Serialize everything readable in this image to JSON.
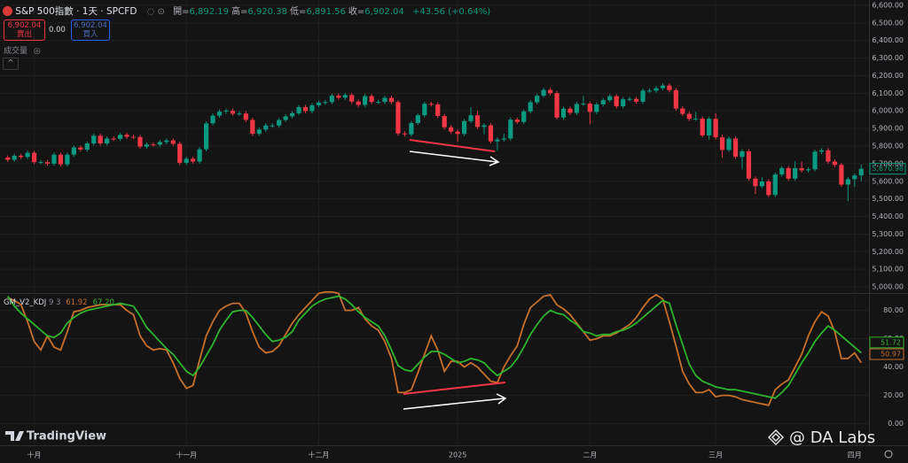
{
  "header": {
    "title": "S&P 500指數 · 1天 · SPCFD",
    "ohlc": [
      {
        "label": "開=",
        "value": "6,892.19"
      },
      {
        "label": "高=",
        "value": "6,920.38"
      },
      {
        "label": "低=",
        "value": "6,891.56"
      },
      {
        "label": "收=",
        "value": "6,902.04"
      }
    ],
    "change": "+43.56 (+0.64%)",
    "sell_price": "6,902.04",
    "sell_label": "賣出",
    "spread": "0.00",
    "buy_price": "6,902.04",
    "buy_label": "買入",
    "volume_label": "成交量"
  },
  "chart_data": [
    {
      "type": "candlestick",
      "up_color": "#089981",
      "down_color": "#f23645",
      "grid": true,
      "categories": [
        null,
        null,
        null,
        null,
        "十月",
        null,
        null,
        null,
        null,
        null,
        null,
        null,
        null,
        null,
        null,
        null,
        null,
        null,
        null,
        null,
        null,
        null,
        null,
        null,
        null,
        null,
        null,
        "十一月",
        null,
        null,
        null,
        null,
        null,
        null,
        null,
        null,
        null,
        null,
        null,
        null,
        null,
        null,
        null,
        null,
        null,
        null,
        null,
        "十二月",
        null,
        null,
        null,
        null,
        null,
        null,
        null,
        null,
        null,
        null,
        null,
        null,
        null,
        null,
        null,
        null,
        null,
        null,
        null,
        null,
        "2025",
        null,
        null,
        null,
        null,
        null,
        null,
        null,
        null,
        null,
        null,
        null,
        null,
        null,
        null,
        null,
        null,
        null,
        null,
        null,
        "二月",
        null,
        null,
        null,
        null,
        null,
        null,
        null,
        null,
        null,
        null,
        null,
        null,
        null,
        null,
        null,
        null,
        null,
        null,
        "三月",
        null,
        null,
        null,
        null,
        null,
        null,
        null,
        null,
        null,
        null,
        null,
        null,
        null,
        null,
        null,
        null,
        null,
        null,
        null,
        null,
        "四月",
        null
      ],
      "open": [
        5735,
        5722,
        5745,
        5738,
        5762,
        5709,
        5709,
        5700,
        5751,
        5696,
        5751,
        5792,
        5780,
        5815,
        5859,
        5815,
        5843,
        5841,
        5864,
        5853,
        5851,
        5797,
        5809,
        5808,
        5823,
        5832,
        5813,
        5705,
        5728,
        5712,
        5782,
        5929,
        5973,
        5996,
        6001,
        5984,
        5985,
        5949,
        5870,
        5894,
        5917,
        5917,
        5948,
        5969,
        5987,
        6021,
        5999,
        6032,
        6047,
        6050,
        6086,
        6075,
        6090,
        6053,
        6034,
        6084,
        6051,
        6051,
        6074,
        6050,
        5872,
        5867,
        5931,
        5975,
        6040,
        6037,
        5971,
        5907,
        5882,
        5869,
        5942,
        5975,
        5909,
        5918,
        5827,
        5837,
        5843,
        5950,
        5937,
        5997,
        6049,
        6086,
        6119,
        6101,
        5962,
        6012,
        5989,
        6039,
        6041,
        5994,
        6037,
        6061,
        6083,
        6026,
        6066,
        6068,
        6052,
        6115,
        6115,
        6129,
        6144,
        6118,
        6013,
        5983,
        5955,
        5956,
        5861,
        5955,
        5850,
        5778,
        5843,
        5739,
        5770,
        5615,
        5572,
        5599,
        5522,
        5639,
        5675,
        5615,
        5675,
        5662,
        5668,
        5768,
        5776,
        5712,
        5693,
        5581,
        5612,
        5633
      ],
      "high": [
        5747,
        5757,
        5757,
        5774,
        5774,
        5721,
        5721,
        5763,
        5763,
        5763,
        5804,
        5804,
        5827,
        5871,
        5871,
        5855,
        5855,
        5876,
        5876,
        5865,
        5863,
        5821,
        5821,
        5835,
        5844,
        5844,
        5825,
        5740,
        5740,
        5794,
        5941,
        5985,
        6008,
        6013,
        6013,
        5997,
        5997,
        5961,
        5906,
        5929,
        5929,
        5960,
        5981,
        5999,
        6033,
        6033,
        6044,
        6059,
        6062,
        6098,
        6098,
        6102,
        6102,
        6065,
        6096,
        6096,
        6063,
        6086,
        6086,
        6062,
        5884,
        5943,
        5987,
        6052,
        6052,
        6049,
        5983,
        5919,
        5894,
        5954,
        6021,
        6000,
        5930,
        5930,
        5849,
        5870,
        5962,
        5962,
        6009,
        6061,
        6098,
        6131,
        6131,
        6113,
        6024,
        6024,
        6051,
        6085,
        6053,
        6049,
        6073,
        6095,
        6095,
        6078,
        6080,
        6080,
        6127,
        6127,
        6141,
        6156,
        6156,
        6130,
        6025,
        5995,
        5995,
        5968,
        5967,
        5987,
        5866,
        5855,
        5855,
        5783,
        5782,
        5627,
        5623,
        5611,
        5651,
        5687,
        5687,
        5715,
        5711,
        5680,
        5780,
        5788,
        5788,
        5724,
        5705,
        5624,
        5645,
        5695
      ],
      "low": [
        5710,
        5710,
        5726,
        5726,
        5697,
        5697,
        5688,
        5688,
        5684,
        5684,
        5739,
        5768,
        5768,
        5803,
        5803,
        5803,
        5829,
        5829,
        5841,
        5839,
        5785,
        5785,
        5796,
        5796,
        5811,
        5801,
        5693,
        5693,
        5700,
        5700,
        5770,
        5917,
        5961,
        5984,
        5972,
        5972,
        5937,
        5858,
        5858,
        5882,
        5905,
        5905,
        5936,
        5957,
        5975,
        5987,
        5987,
        6020,
        6035,
        6038,
        6063,
        6063,
        6041,
        6022,
        6022,
        6039,
        6039,
        6039,
        6038,
        5860,
        5855,
        5855,
        5919,
        5963,
        6025,
        5959,
        5895,
        5870,
        5824,
        5857,
        5930,
        5897,
        5867,
        5815,
        5773,
        5825,
        5831,
        5925,
        5925,
        5985,
        6037,
        6074,
        6089,
        5950,
        5950,
        5977,
        5977,
        6029,
        5924,
        5982,
        6025,
        6049,
        6014,
        6014,
        6054,
        6040,
        6040,
        6103,
        6103,
        6117,
        6106,
        6001,
        5971,
        5943,
        5943,
        5849,
        5837,
        5838,
        5733,
        5766,
        5727,
        5667,
        5603,
        5528,
        5560,
        5510,
        5510,
        5627,
        5603,
        5603,
        5650,
        5650,
        5656,
        5756,
        5700,
        5681,
        5569,
        5488,
        5568,
        5600
      ],
      "close": [
        5722,
        5745,
        5738,
        5762,
        5709,
        5709,
        5700,
        5751,
        5696,
        5751,
        5792,
        5780,
        5815,
        5859,
        5815,
        5843,
        5841,
        5864,
        5853,
        5851,
        5797,
        5809,
        5808,
        5823,
        5832,
        5813,
        5705,
        5728,
        5712,
        5782,
        5929,
        5973,
        5996,
        6001,
        5984,
        5985,
        5949,
        5870,
        5894,
        5917,
        5917,
        5948,
        5969,
        5987,
        6021,
        5999,
        6032,
        6047,
        6050,
        6086,
        6075,
        6090,
        6053,
        6034,
        6084,
        6051,
        6051,
        6074,
        6050,
        5872,
        5867,
        5931,
        5975,
        6040,
        6037,
        5971,
        5907,
        5882,
        5869,
        5942,
        5975,
        5909,
        5918,
        5827,
        5837,
        5843,
        5950,
        5937,
        5997,
        6049,
        6086,
        6119,
        6101,
        5962,
        6012,
        5989,
        6039,
        6041,
        5994,
        6037,
        6061,
        6083,
        6026,
        6066,
        6068,
        6052,
        6115,
        6115,
        6129,
        6144,
        6118,
        6013,
        5983,
        5955,
        5956,
        5861,
        5955,
        5850,
        5778,
        5843,
        5739,
        5770,
        5615,
        5572,
        5599,
        5522,
        5639,
        5675,
        5615,
        5675,
        5662,
        5668,
        5768,
        5776,
        5712,
        5693,
        5581,
        5612,
        5633,
        5671
      ],
      "ylim": [
        4965,
        6630
      ],
      "yticks": [
        {
          "value": 6600,
          "label": "6,600.00"
        },
        {
          "value": 6500,
          "label": "6,500.00"
        },
        {
          "value": 6400,
          "label": "6,400.00"
        },
        {
          "value": 6300,
          "label": "6,300.00"
        },
        {
          "value": 6200,
          "label": "6,200.00"
        },
        {
          "value": 6100,
          "label": "6,100.00"
        },
        {
          "value": 6000,
          "label": "6,000.00"
        },
        {
          "value": 5900,
          "label": "5,900.00"
        },
        {
          "value": 5800,
          "label": "5,800.00"
        },
        {
          "value": 5700,
          "label": "5,700.00"
        },
        {
          "value": 5600,
          "label": "5,600.00"
        },
        {
          "value": 5500,
          "label": "5,500.00"
        },
        {
          "value": 5400,
          "label": "5,400.00"
        },
        {
          "value": 5300,
          "label": "5,300.00"
        },
        {
          "value": 5200,
          "label": "5,200.00"
        },
        {
          "value": 5100,
          "label": "5,100.00"
        },
        {
          "value": 5000,
          "label": "5,000.00"
        }
      ],
      "last_price": {
        "value": 5670.98,
        "label": "5,670.98"
      }
    },
    {
      "type": "line",
      "title": "GM_V2_KDJ",
      "params": "9 3",
      "grid": true,
      "series": [
        {
          "color": "#c8702a",
          "legend_value": "61.92",
          "axis_label": 50.97,
          "values": [
            89,
            87,
            84,
            72,
            58,
            52,
            62,
            54,
            52,
            65,
            79,
            80,
            82,
            83,
            84,
            84,
            84,
            84,
            80,
            77,
            62,
            55,
            52,
            53,
            52,
            43,
            32,
            25,
            27,
            45,
            62,
            72,
            80,
            83,
            85,
            85,
            78,
            65,
            54,
            50,
            51,
            55,
            63,
            71,
            77,
            82,
            87,
            92,
            93,
            93,
            92,
            80,
            80,
            82,
            74,
            69,
            66,
            58,
            46,
            22,
            22,
            24,
            36,
            49,
            62,
            52,
            37,
            44,
            44,
            40,
            43,
            40,
            35,
            30,
            29,
            40,
            48,
            55,
            70,
            82,
            86,
            90,
            91,
            84,
            81,
            77,
            71,
            65,
            59,
            60,
            62,
            62,
            64,
            67,
            70,
            75,
            82,
            88,
            91,
            88,
            72,
            55,
            37,
            28,
            22,
            22,
            24,
            19,
            20,
            20,
            19,
            17,
            16,
            15,
            14,
            13,
            24,
            28,
            31,
            40,
            49,
            62,
            72,
            79,
            76,
            65,
            46,
            46,
            50,
            43
          ]
        },
        {
          "color": "#2db52d",
          "legend_value": "67.20",
          "axis_label": 51.72,
          "values": [
            90,
            83,
            78,
            74,
            70,
            66,
            62,
            61,
            64,
            71,
            75,
            78,
            80,
            81,
            82,
            83,
            84,
            85,
            84,
            83,
            76,
            68,
            63,
            58,
            53,
            49,
            43,
            37,
            34,
            40,
            48,
            56,
            66,
            73,
            79,
            80,
            80,
            75,
            69,
            63,
            58,
            59,
            61,
            65,
            73,
            78,
            83,
            86,
            88,
            89,
            90,
            88,
            84,
            79,
            75,
            72,
            69,
            62,
            52,
            41,
            38,
            37,
            42,
            47,
            51,
            51,
            49,
            46,
            43,
            44,
            46,
            45,
            43,
            38,
            34,
            37,
            40,
            46,
            54,
            63,
            70,
            76,
            80,
            78,
            77,
            73,
            70,
            65,
            64,
            62,
            63,
            63,
            65,
            66,
            68,
            71,
            75,
            79,
            83,
            87,
            85,
            70,
            56,
            42,
            34,
            30,
            28,
            26,
            25,
            24,
            24,
            23,
            22,
            21,
            20,
            19,
            18,
            22,
            27,
            35,
            43,
            50,
            58,
            64,
            69,
            66,
            62,
            58,
            54,
            50
          ]
        }
      ],
      "ylim": [
        -4,
        91
      ],
      "yticks": [
        {
          "value": 80,
          "label": "80.00"
        },
        {
          "value": 60,
          "label": "60.00"
        },
        {
          "value": 40,
          "label": "40.00"
        },
        {
          "value": 20,
          "label": "20.00"
        },
        {
          "value": 0,
          "label": "0.00"
        }
      ]
    }
  ],
  "footer": {
    "logo": "TradingView",
    "watermark": "@ DA Labs"
  }
}
